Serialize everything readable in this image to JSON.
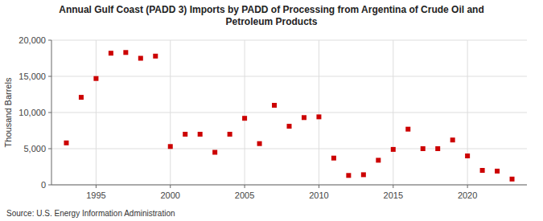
{
  "chart_data": {
    "type": "scatter",
    "title": "Annual Gulf Coast (PADD 3) Imports by PADD of Processing from Argentina of Crude Oil and\nPetroleum Products",
    "ylabel": "Thousand Barrels",
    "source": "Source: U.S. Energy Information Administration",
    "x": [
      1993,
      1994,
      1995,
      1996,
      1997,
      1998,
      1999,
      2000,
      2001,
      2002,
      2003,
      2004,
      2005,
      2006,
      2007,
      2008,
      2009,
      2010,
      2011,
      2012,
      2013,
      2014,
      2015,
      2016,
      2017,
      2018,
      2019,
      2020,
      2021,
      2022,
      2023
    ],
    "values": [
      5800,
      12100,
      14700,
      18200,
      18300,
      17500,
      17800,
      5300,
      7000,
      7000,
      4500,
      7000,
      9200,
      5700,
      11000,
      8100,
      9300,
      9400,
      3700,
      1300,
      1400,
      3400,
      4900,
      7700,
      5000,
      5000,
      6200,
      4000,
      2000,
      1900,
      800
    ],
    "color": "#cc0000",
    "marker": "square",
    "xlim": [
      1992,
      2024
    ],
    "ylim": [
      0,
      20000
    ],
    "xticks": [
      1995,
      2000,
      2005,
      2010,
      2015,
      2020
    ],
    "yticks": [
      0,
      {
        "value": 5000,
        "label": "5,000"
      },
      {
        "value": 10000,
        "label": "10,000"
      },
      {
        "value": 15000,
        "label": "15,000"
      },
      {
        "value": 20000,
        "label": "20,000"
      }
    ],
    "grid": true
  }
}
